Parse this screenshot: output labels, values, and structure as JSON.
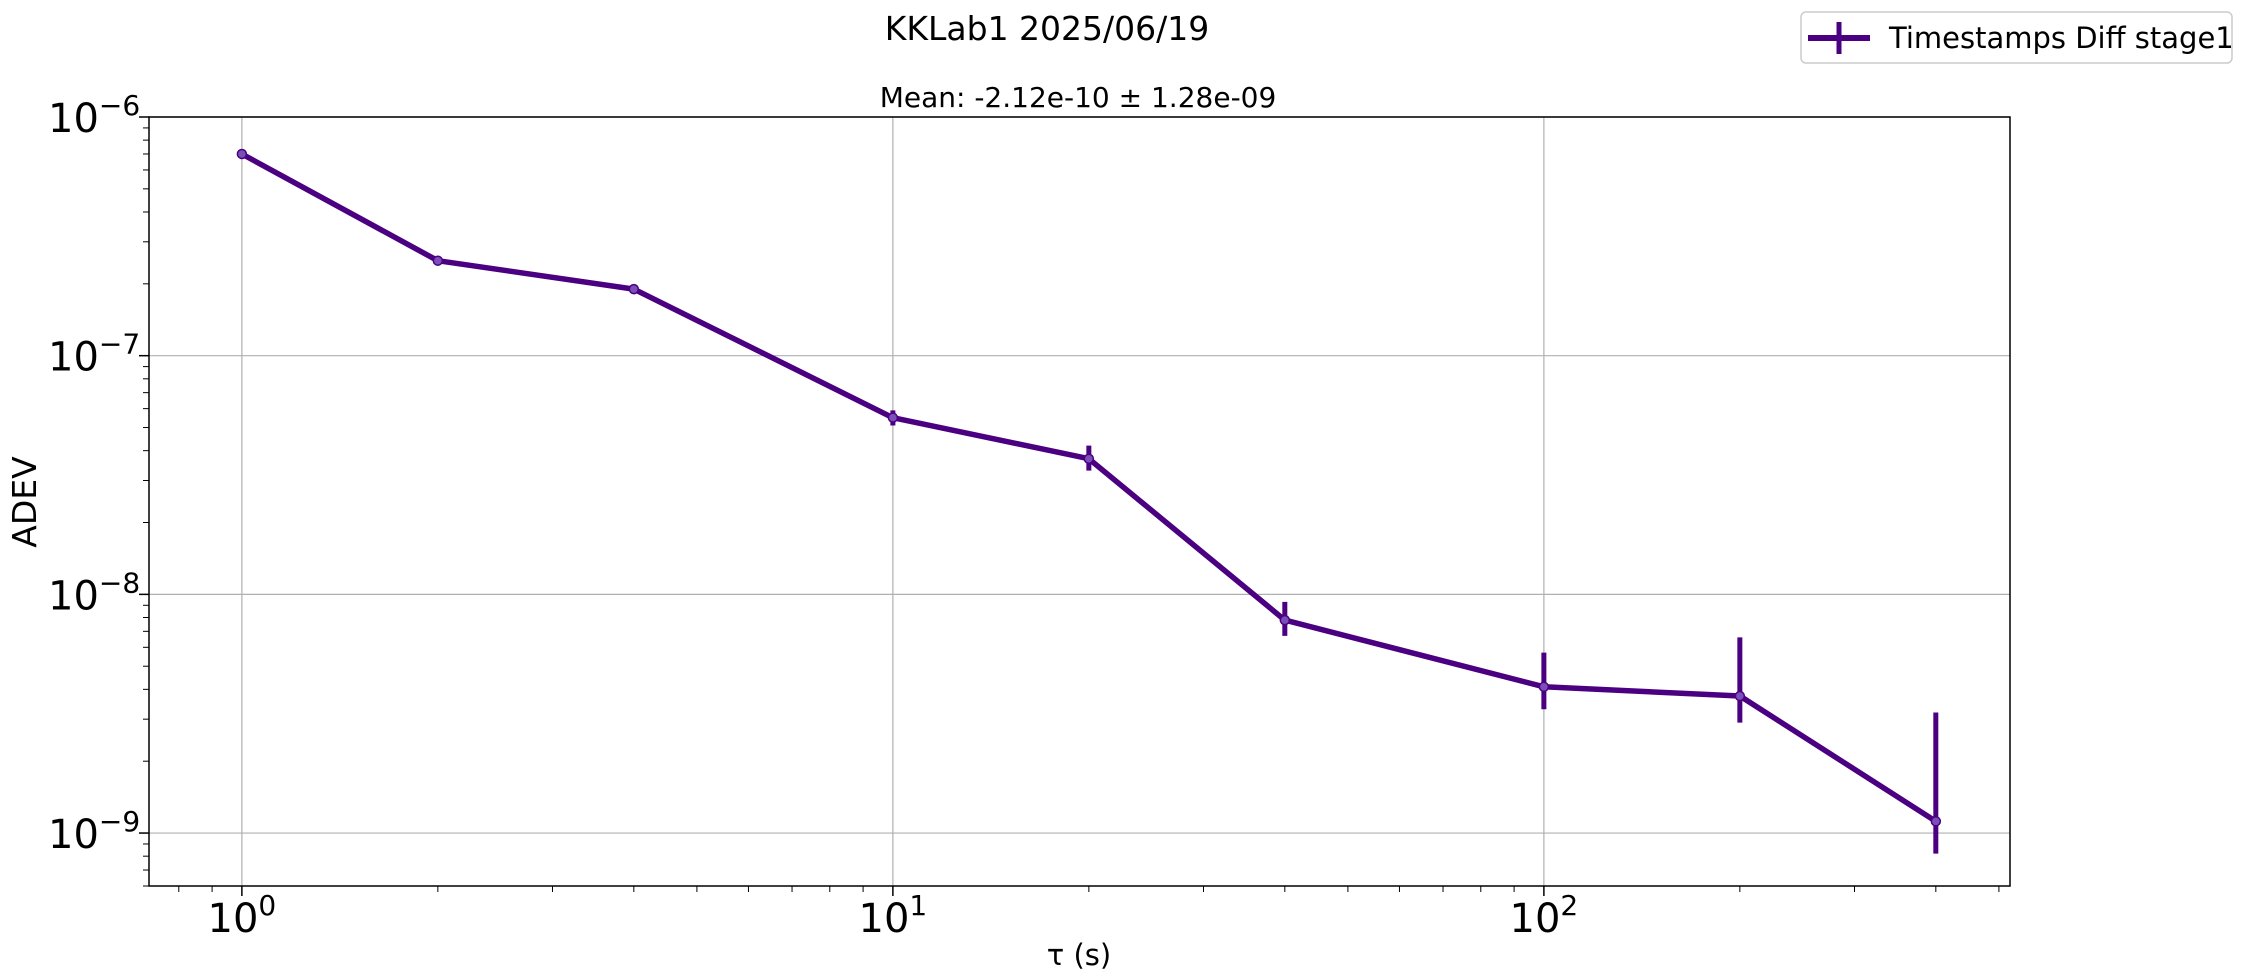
{
  "chart_data": {
    "type": "line",
    "title": "KKLab1 2025/06/19",
    "subtitle": "Mean: -2.12e-10 ± 1.28e-09",
    "xlabel": "τ (s)",
    "ylabel": "ADEV",
    "xscale": "log",
    "yscale": "log",
    "xlim": [
      0.72,
      520
    ],
    "ylim": [
      6e-10,
      1e-06
    ],
    "xticks": [
      {
        "value": 1,
        "base": "10",
        "exp": "0"
      },
      {
        "value": 10,
        "base": "10",
        "exp": "1"
      },
      {
        "value": 100,
        "base": "10",
        "exp": "2"
      }
    ],
    "yticks": [
      {
        "value": 1e-06,
        "base": "10",
        "exp": "−6"
      },
      {
        "value": 1e-07,
        "base": "10",
        "exp": "−7"
      },
      {
        "value": 1e-08,
        "base": "10",
        "exp": "−8"
      },
      {
        "value": 1e-09,
        "base": "10",
        "exp": "−9"
      }
    ],
    "grid": true,
    "legend_position": "top-right",
    "series": [
      {
        "name": "Timestamps Diff stage1",
        "color": "#4b0082",
        "x": [
          1,
          2,
          4,
          10,
          20,
          40,
          100,
          200,
          400
        ],
        "y": [
          7e-07,
          2.5e-07,
          1.9e-07,
          5.5e-08,
          3.7e-08,
          7.8e-09,
          4.1e-09,
          3.75e-09,
          1.12e-09
        ],
        "yerr_low": [
          6.9e-07,
          2.47e-07,
          1.88e-07,
          5.1e-08,
          3.3e-08,
          6.7e-09,
          3.3e-09,
          2.9e-09,
          8.2e-10
        ],
        "yerr_high": [
          7.1e-07,
          2.53e-07,
          1.92e-07,
          5.9e-08,
          4.2e-08,
          9.3e-09,
          5.7e-09,
          6.6e-09,
          3.2e-09
        ]
      }
    ]
  }
}
